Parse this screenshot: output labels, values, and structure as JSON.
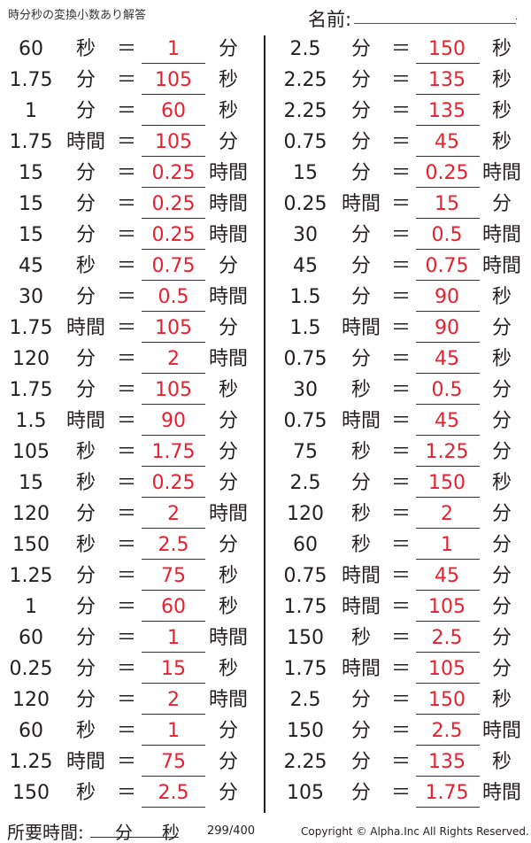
{
  "header": {
    "title": "時分秒の変換小数あり解答",
    "name_label": "名前:"
  },
  "equals": "＝",
  "left": [
    [
      "60",
      "秒",
      "1",
      "分"
    ],
    [
      "1.75",
      "分",
      "105",
      "秒"
    ],
    [
      "1",
      "分",
      "60",
      "秒"
    ],
    [
      "1.75",
      "時間",
      "105",
      "分"
    ],
    [
      "15",
      "分",
      "0.25",
      "時間"
    ],
    [
      "15",
      "分",
      "0.25",
      "時間"
    ],
    [
      "15",
      "分",
      "0.25",
      "時間"
    ],
    [
      "45",
      "秒",
      "0.75",
      "分"
    ],
    [
      "30",
      "分",
      "0.5",
      "時間"
    ],
    [
      "1.75",
      "時間",
      "105",
      "分"
    ],
    [
      "120",
      "分",
      "2",
      "時間"
    ],
    [
      "1.75",
      "分",
      "105",
      "秒"
    ],
    [
      "1.5",
      "時間",
      "90",
      "分"
    ],
    [
      "105",
      "秒",
      "1.75",
      "分"
    ],
    [
      "15",
      "秒",
      "0.25",
      "分"
    ],
    [
      "120",
      "分",
      "2",
      "時間"
    ],
    [
      "150",
      "秒",
      "2.5",
      "分"
    ],
    [
      "1.25",
      "分",
      "75",
      "秒"
    ],
    [
      "1",
      "分",
      "60",
      "秒"
    ],
    [
      "60",
      "分",
      "1",
      "時間"
    ],
    [
      "0.25",
      "分",
      "15",
      "秒"
    ],
    [
      "120",
      "分",
      "2",
      "時間"
    ],
    [
      "60",
      "秒",
      "1",
      "分"
    ],
    [
      "1.25",
      "時間",
      "75",
      "分"
    ],
    [
      "150",
      "秒",
      "2.5",
      "分"
    ]
  ],
  "right": [
    [
      "2.5",
      "分",
      "150",
      "秒"
    ],
    [
      "2.25",
      "分",
      "135",
      "秒"
    ],
    [
      "2.25",
      "分",
      "135",
      "秒"
    ],
    [
      "0.75",
      "分",
      "45",
      "秒"
    ],
    [
      "15",
      "分",
      "0.25",
      "時間"
    ],
    [
      "0.25",
      "時間",
      "15",
      "分"
    ],
    [
      "30",
      "分",
      "0.5",
      "時間"
    ],
    [
      "45",
      "分",
      "0.75",
      "時間"
    ],
    [
      "1.5",
      "分",
      "90",
      "秒"
    ],
    [
      "1.5",
      "時間",
      "90",
      "分"
    ],
    [
      "0.75",
      "分",
      "45",
      "秒"
    ],
    [
      "30",
      "秒",
      "0.5",
      "分"
    ],
    [
      "0.75",
      "時間",
      "45",
      "分"
    ],
    [
      "75",
      "秒",
      "1.25",
      "分"
    ],
    [
      "2.5",
      "分",
      "150",
      "秒"
    ],
    [
      "120",
      "秒",
      "2",
      "分"
    ],
    [
      "60",
      "秒",
      "1",
      "分"
    ],
    [
      "0.75",
      "時間",
      "45",
      "分"
    ],
    [
      "1.75",
      "時間",
      "105",
      "分"
    ],
    [
      "150",
      "秒",
      "2.5",
      "分"
    ],
    [
      "1.75",
      "時間",
      "105",
      "分"
    ],
    [
      "2.5",
      "分",
      "150",
      "秒"
    ],
    [
      "150",
      "分",
      "2.5",
      "時間"
    ],
    [
      "2.25",
      "分",
      "135",
      "秒"
    ],
    [
      "105",
      "分",
      "1.75",
      "時間"
    ]
  ],
  "footer": {
    "time_label": "所要時間:",
    "minutes_unit": "分",
    "seconds_unit": "秒",
    "page": "299/400",
    "copyright": "Copyright © Alpha.Inc All Rights Reserved."
  },
  "colors": {
    "answer": "#e8202f",
    "text": "#231f20"
  }
}
